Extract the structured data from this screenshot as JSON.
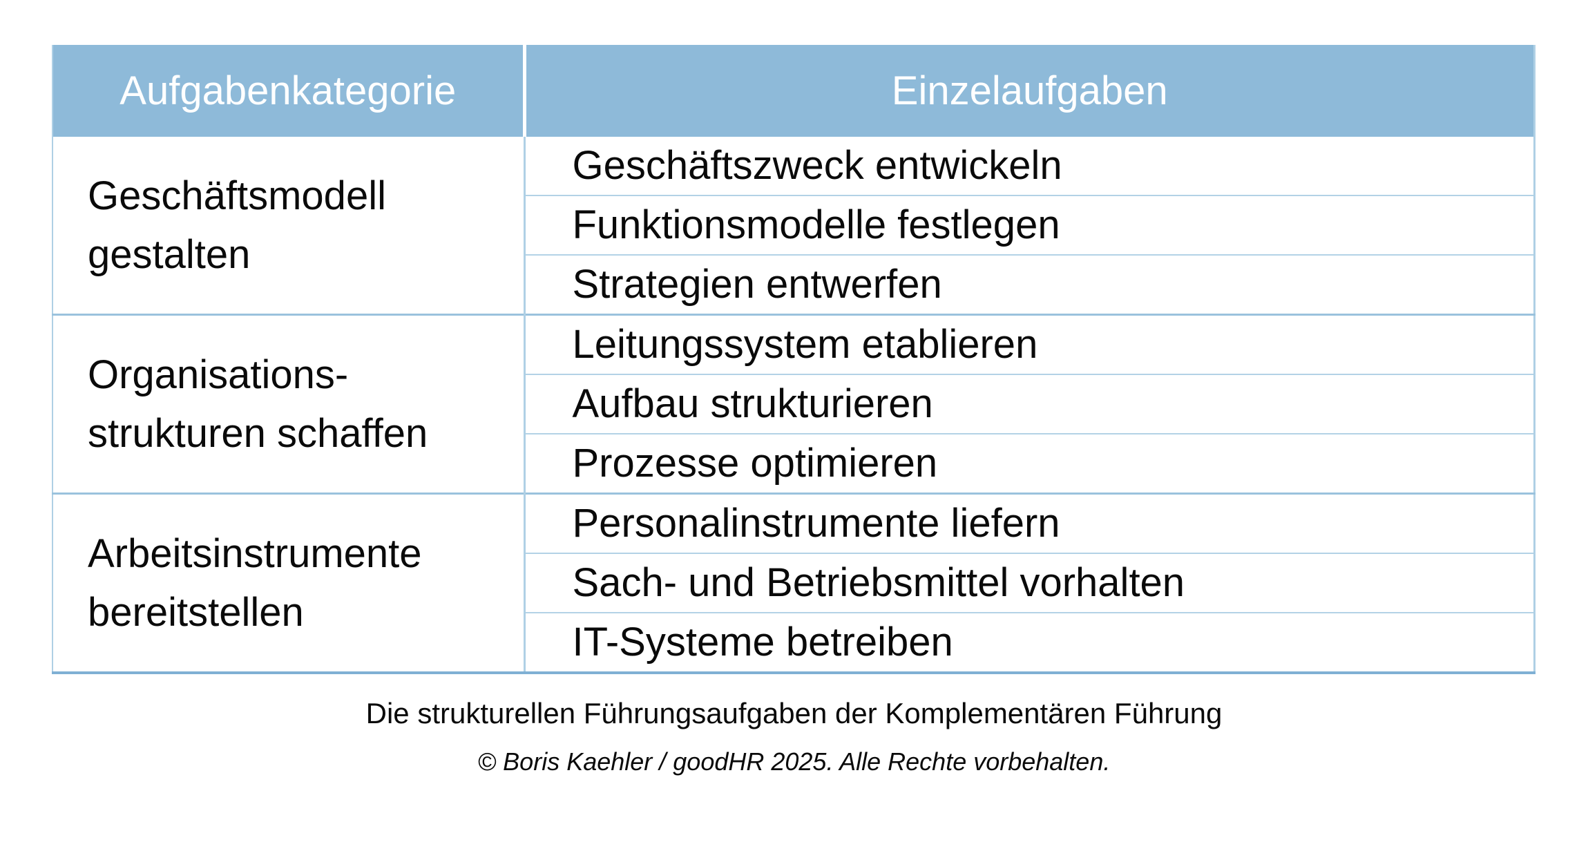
{
  "table": {
    "headers": [
      {
        "label": "Aufgabenkategorie"
      },
      {
        "label": "Einzelaufgaben"
      }
    ],
    "groups": [
      {
        "category": "Geschäftsmodell\ngestalten",
        "tasks": [
          "Geschäftszweck entwickeln",
          "Funktionsmodelle festlegen",
          "Strategien entwerfen"
        ]
      },
      {
        "category": "Organisations-\nstrukturen schaffen",
        "tasks": [
          "Leitungssystem etablieren",
          "Aufbau strukturieren",
          "Prozesse optimieren"
        ]
      },
      {
        "category": "Arbeitsinstrumente\nbereitstellen",
        "tasks": [
          "Personalinstrumente liefern",
          "Sach- und Betriebsmittel vorhalten",
          "IT-Systeme betreiben"
        ]
      }
    ]
  },
  "caption": {
    "title": "Die strukturellen Führungsaufgaben der Komplementären Führung",
    "copyright": "© Boris Kaehler / goodHR 2025. Alle Rechte vorbehalten."
  },
  "colors": {
    "header_bg": "#8ebad9",
    "header_text": "#ffffff",
    "body_text": "#0a0a0a",
    "inner_grid_line": "#b3d2e6",
    "group_boundary_line": "#9ac2dd",
    "outer_bottom_line": "#7fb0d4"
  }
}
